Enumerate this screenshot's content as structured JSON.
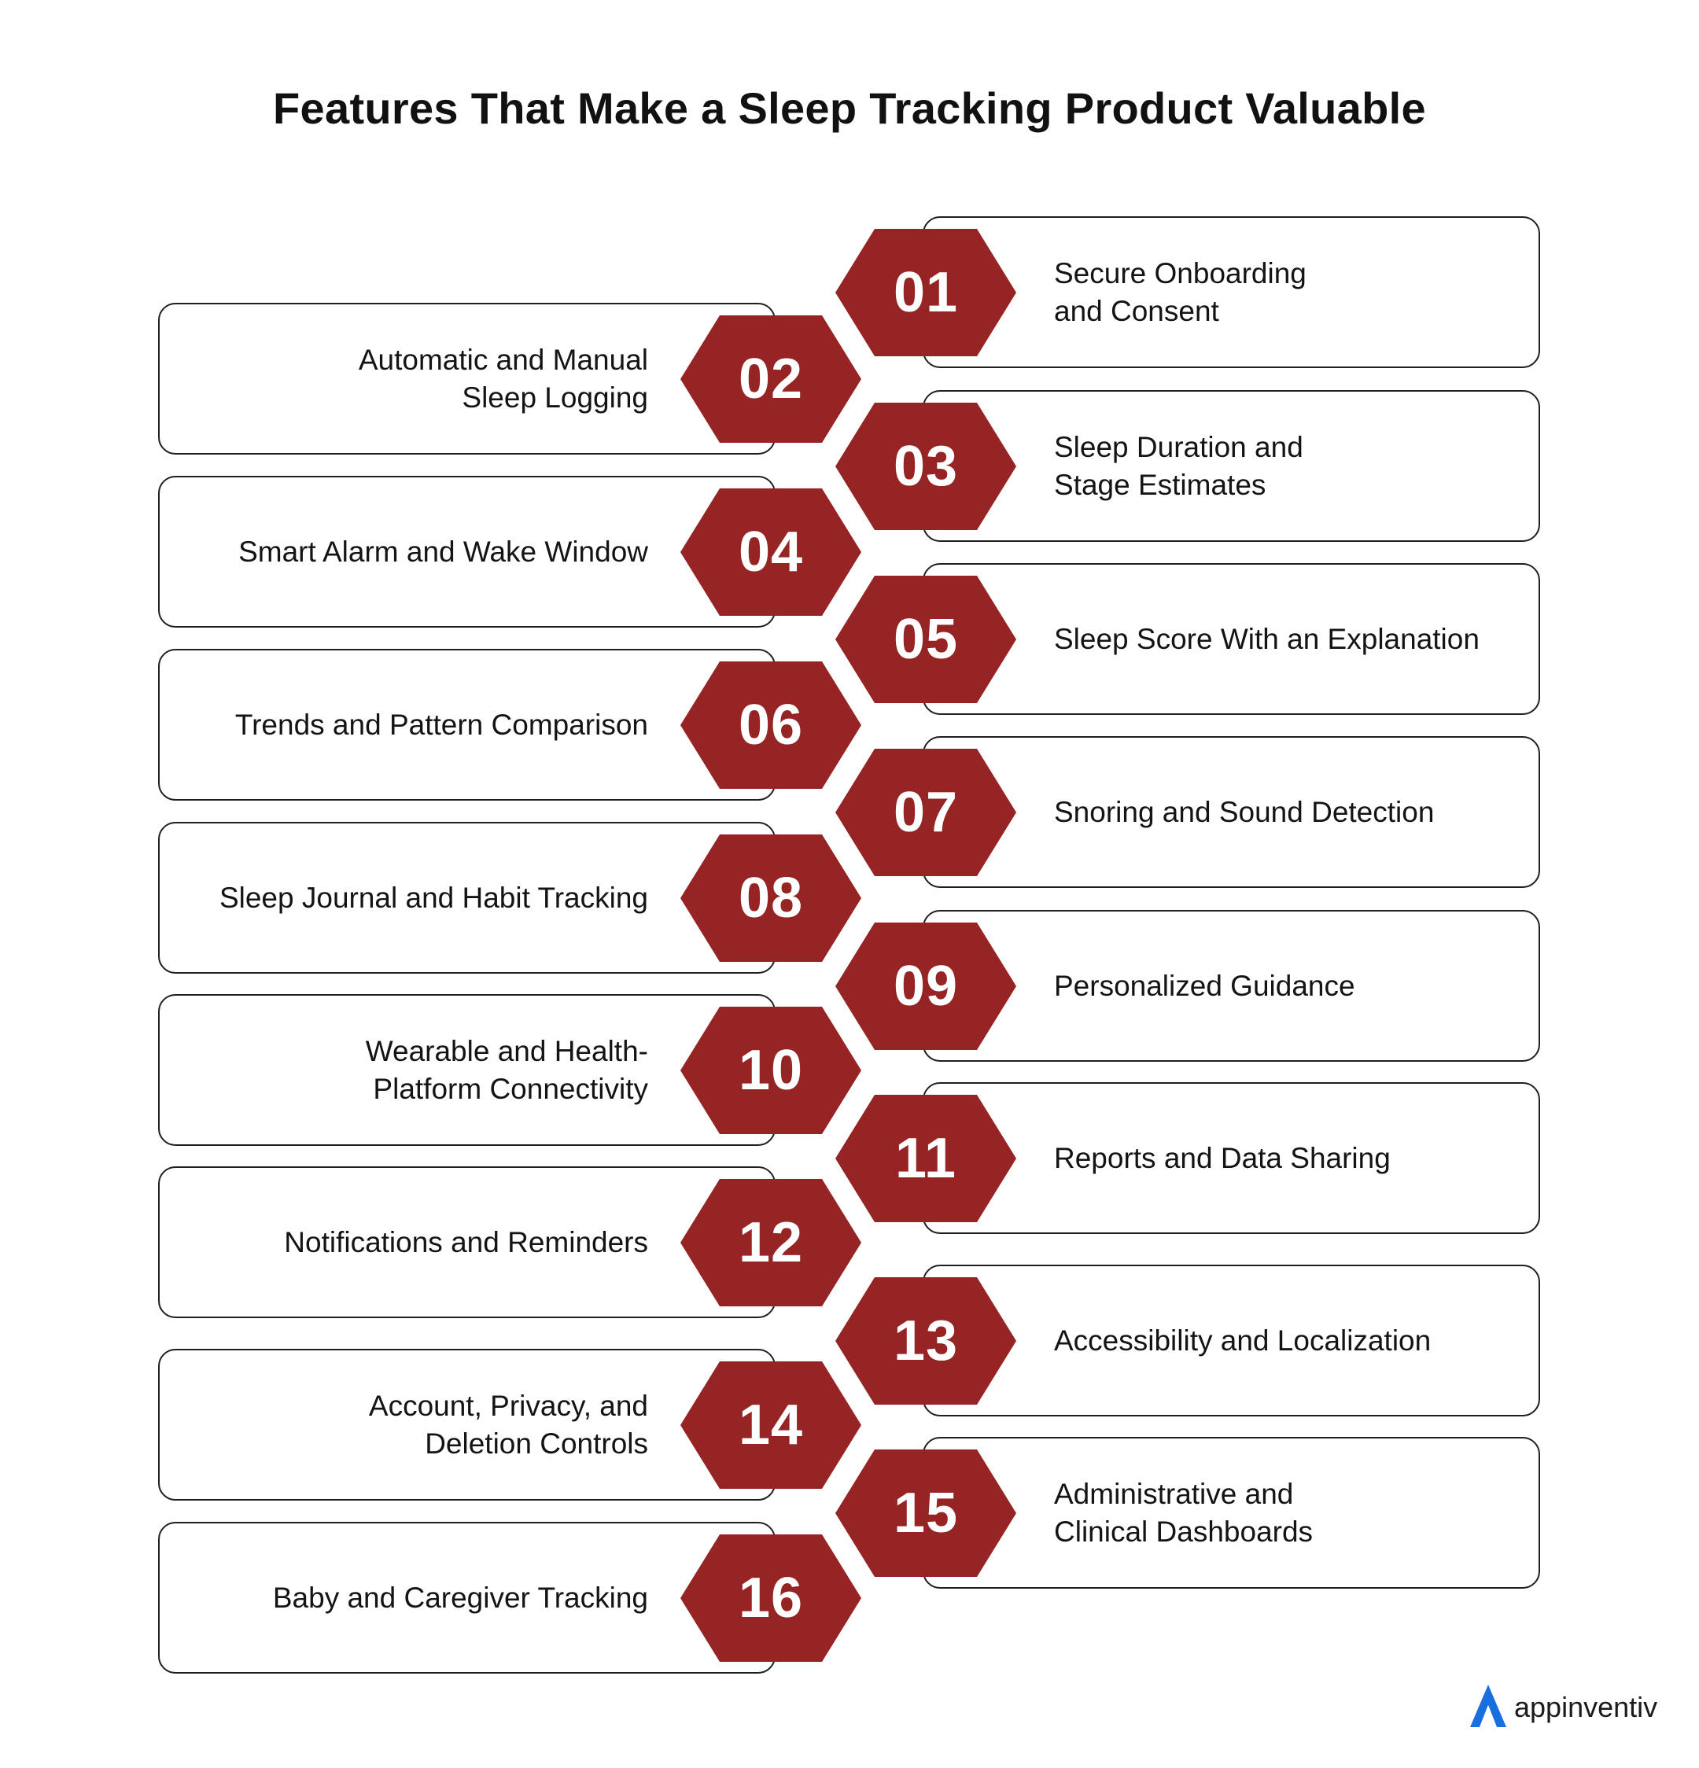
{
  "title": "Features That Make a Sleep Tracking Product Valuable",
  "colors": {
    "hexagon": "#962424",
    "card_border": "#1f1f1f",
    "logo_accent": "#1a6fe0"
  },
  "features": [
    {
      "number": "01",
      "label": "Secure Onboarding\nand Consent",
      "side": "right"
    },
    {
      "number": "02",
      "label": "Automatic and Manual\nSleep Logging",
      "side": "left"
    },
    {
      "number": "03",
      "label": "Sleep Duration and\nStage Estimates",
      "side": "right"
    },
    {
      "number": "04",
      "label": "Smart Alarm and Wake Window",
      "side": "left"
    },
    {
      "number": "05",
      "label": "Sleep Score With an Explanation",
      "side": "right"
    },
    {
      "number": "06",
      "label": "Trends and Pattern Comparison",
      "side": "left"
    },
    {
      "number": "07",
      "label": "Snoring and Sound Detection",
      "side": "right"
    },
    {
      "number": "08",
      "label": "Sleep Journal and Habit Tracking",
      "side": "left"
    },
    {
      "number": "09",
      "label": "Personalized Guidance",
      "side": "right"
    },
    {
      "number": "10",
      "label": "Wearable and Health-\nPlatform Connectivity",
      "side": "left"
    },
    {
      "number": "11",
      "label": "Reports and Data Sharing",
      "side": "right"
    },
    {
      "number": "12",
      "label": "Notifications and Reminders",
      "side": "left"
    },
    {
      "number": "13",
      "label": "Accessibility and Localization",
      "side": "right"
    },
    {
      "number": "14",
      "label": "Account, Privacy, and\nDeletion Controls",
      "side": "left"
    },
    {
      "number": "15",
      "label": "Administrative and\nClinical Dashboards",
      "side": "right"
    },
    {
      "number": "16",
      "label": "Baby and Caregiver Tracking",
      "side": "left"
    }
  ],
  "logo": {
    "text": "appinventiv",
    "icon": "appinventiv-logo-icon"
  }
}
